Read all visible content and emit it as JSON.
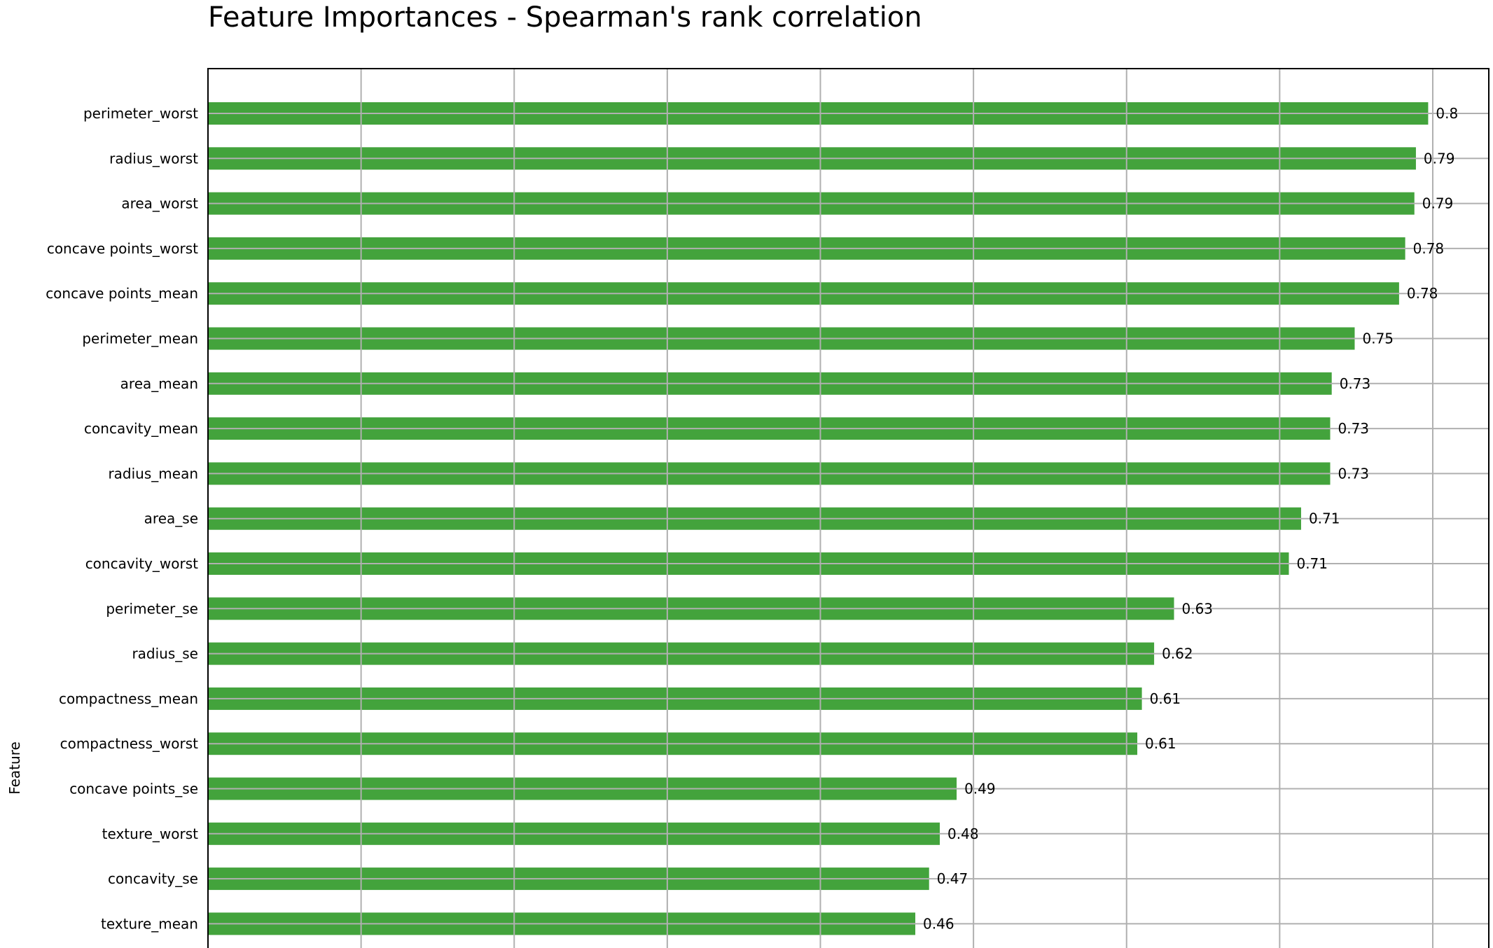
{
  "chart_data": {
    "type": "bar",
    "orientation": "horizontal",
    "title": "Feature Importances - Spearman's rank correlation",
    "xlabel": "",
    "ylabel": "Feature",
    "xlim": [
      0,
      0.8366
    ],
    "grid": true,
    "bar_color": "#43a33c",
    "categories": [
      "perimeter_worst",
      "radius_worst",
      "area_worst",
      "concave points_worst",
      "concave points_mean",
      "perimeter_mean",
      "area_mean",
      "concavity_mean",
      "radius_mean",
      "area_se",
      "concavity_worst",
      "perimeter_se",
      "radius_se",
      "compactness_mean",
      "compactness_worst",
      "concave points_se",
      "texture_worst",
      "concavity_se",
      "texture_mean"
    ],
    "values": [
      0.797,
      0.789,
      0.788,
      0.782,
      0.778,
      0.749,
      0.734,
      0.733,
      0.733,
      0.714,
      0.706,
      0.631,
      0.618,
      0.61,
      0.607,
      0.489,
      0.478,
      0.471,
      0.462
    ],
    "value_labels": [
      "0.8",
      "0.79",
      "0.79",
      "0.78",
      "0.78",
      "0.75",
      "0.73",
      "0.73",
      "0.73",
      "0.71",
      "0.71",
      "0.63",
      "0.62",
      "0.61",
      "0.61",
      "0.49",
      "0.48",
      "0.47",
      "0.46"
    ],
    "x_gridlines": [
      0.1,
      0.2,
      0.3,
      0.4,
      0.5,
      0.6,
      0.7,
      0.8
    ]
  }
}
